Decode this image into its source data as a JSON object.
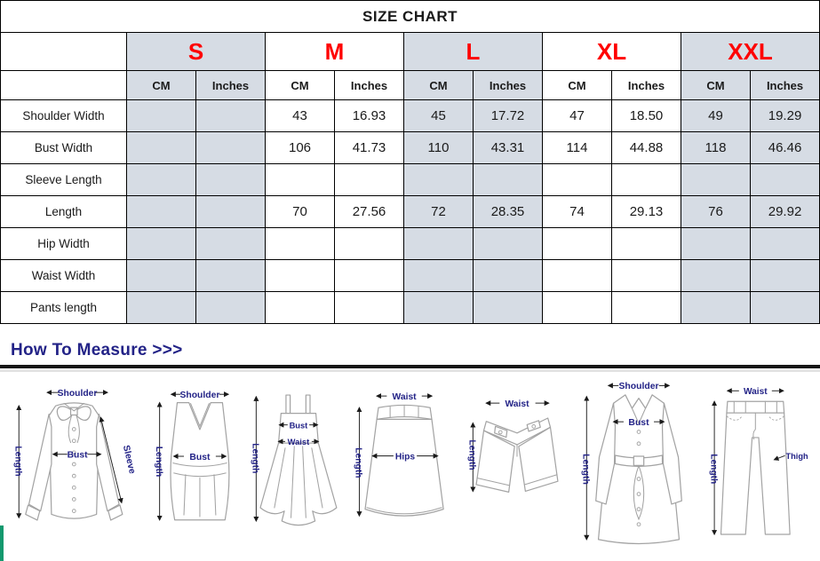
{
  "title": "SIZE CHART",
  "table": {
    "sizes": [
      "S",
      "M",
      "L",
      "XL",
      "XXL"
    ],
    "unit_headers": [
      "CM",
      "Inches"
    ],
    "rows": [
      {
        "label": "Shoulder Width",
        "values": [
          "",
          "",
          "43",
          "16.93",
          "45",
          "17.72",
          "47",
          "18.50",
          "49",
          "19.29"
        ]
      },
      {
        "label": "Bust Width",
        "values": [
          "",
          "",
          "106",
          "41.73",
          "110",
          "43.31",
          "114",
          "44.88",
          "118",
          "46.46"
        ]
      },
      {
        "label": "Sleeve Length",
        "values": [
          "",
          "",
          "",
          "",
          "",
          "",
          "",
          "",
          "",
          ""
        ]
      },
      {
        "label": "Length",
        "values": [
          "",
          "",
          "70",
          "27.56",
          "72",
          "28.35",
          "74",
          "29.13",
          "76",
          "29.92"
        ]
      },
      {
        "label": "Hip Width",
        "values": [
          "",
          "",
          "",
          "",
          "",
          "",
          "",
          "",
          "",
          ""
        ]
      },
      {
        "label": "Waist Width",
        "values": [
          "",
          "",
          "",
          "",
          "",
          "",
          "",
          "",
          "",
          ""
        ]
      },
      {
        "label": "Pants length",
        "values": [
          "",
          "",
          "",
          "",
          "",
          "",
          "",
          "",
          "",
          ""
        ]
      }
    ]
  },
  "measure": {
    "heading": "How To Measure >>>"
  },
  "diagrams": [
    {
      "name": "blouse",
      "labels": {
        "shoulder": "Shoulder",
        "length": "Length",
        "bust": "Bust",
        "sleeve": "Sleeve"
      }
    },
    {
      "name": "tank-top",
      "labels": {
        "shoulder": "Shoulder",
        "length": "Length",
        "bust": "Bust"
      }
    },
    {
      "name": "dress",
      "labels": {
        "length": "Length",
        "bust": "Bust",
        "waist": "Waist"
      }
    },
    {
      "name": "skirt",
      "labels": {
        "waist": "Waist",
        "length": "Length",
        "hips": "Hips"
      }
    },
    {
      "name": "shorts",
      "labels": {
        "waist": "Waist",
        "length": "Length"
      }
    },
    {
      "name": "coat",
      "labels": {
        "shoulder": "Shoulder",
        "length": "Length",
        "bust": "Bust"
      }
    },
    {
      "name": "pants",
      "labels": {
        "waist": "Waist",
        "length": "Length",
        "thigh": "Thigh"
      }
    }
  ],
  "colors": {
    "size_red": "#ff0000",
    "shaded_column": "#d6dce4",
    "label_navy": "#232387",
    "rule_black": "#161616",
    "green_strip": "#12996e",
    "sketch_gray": "#a3a3a3"
  }
}
